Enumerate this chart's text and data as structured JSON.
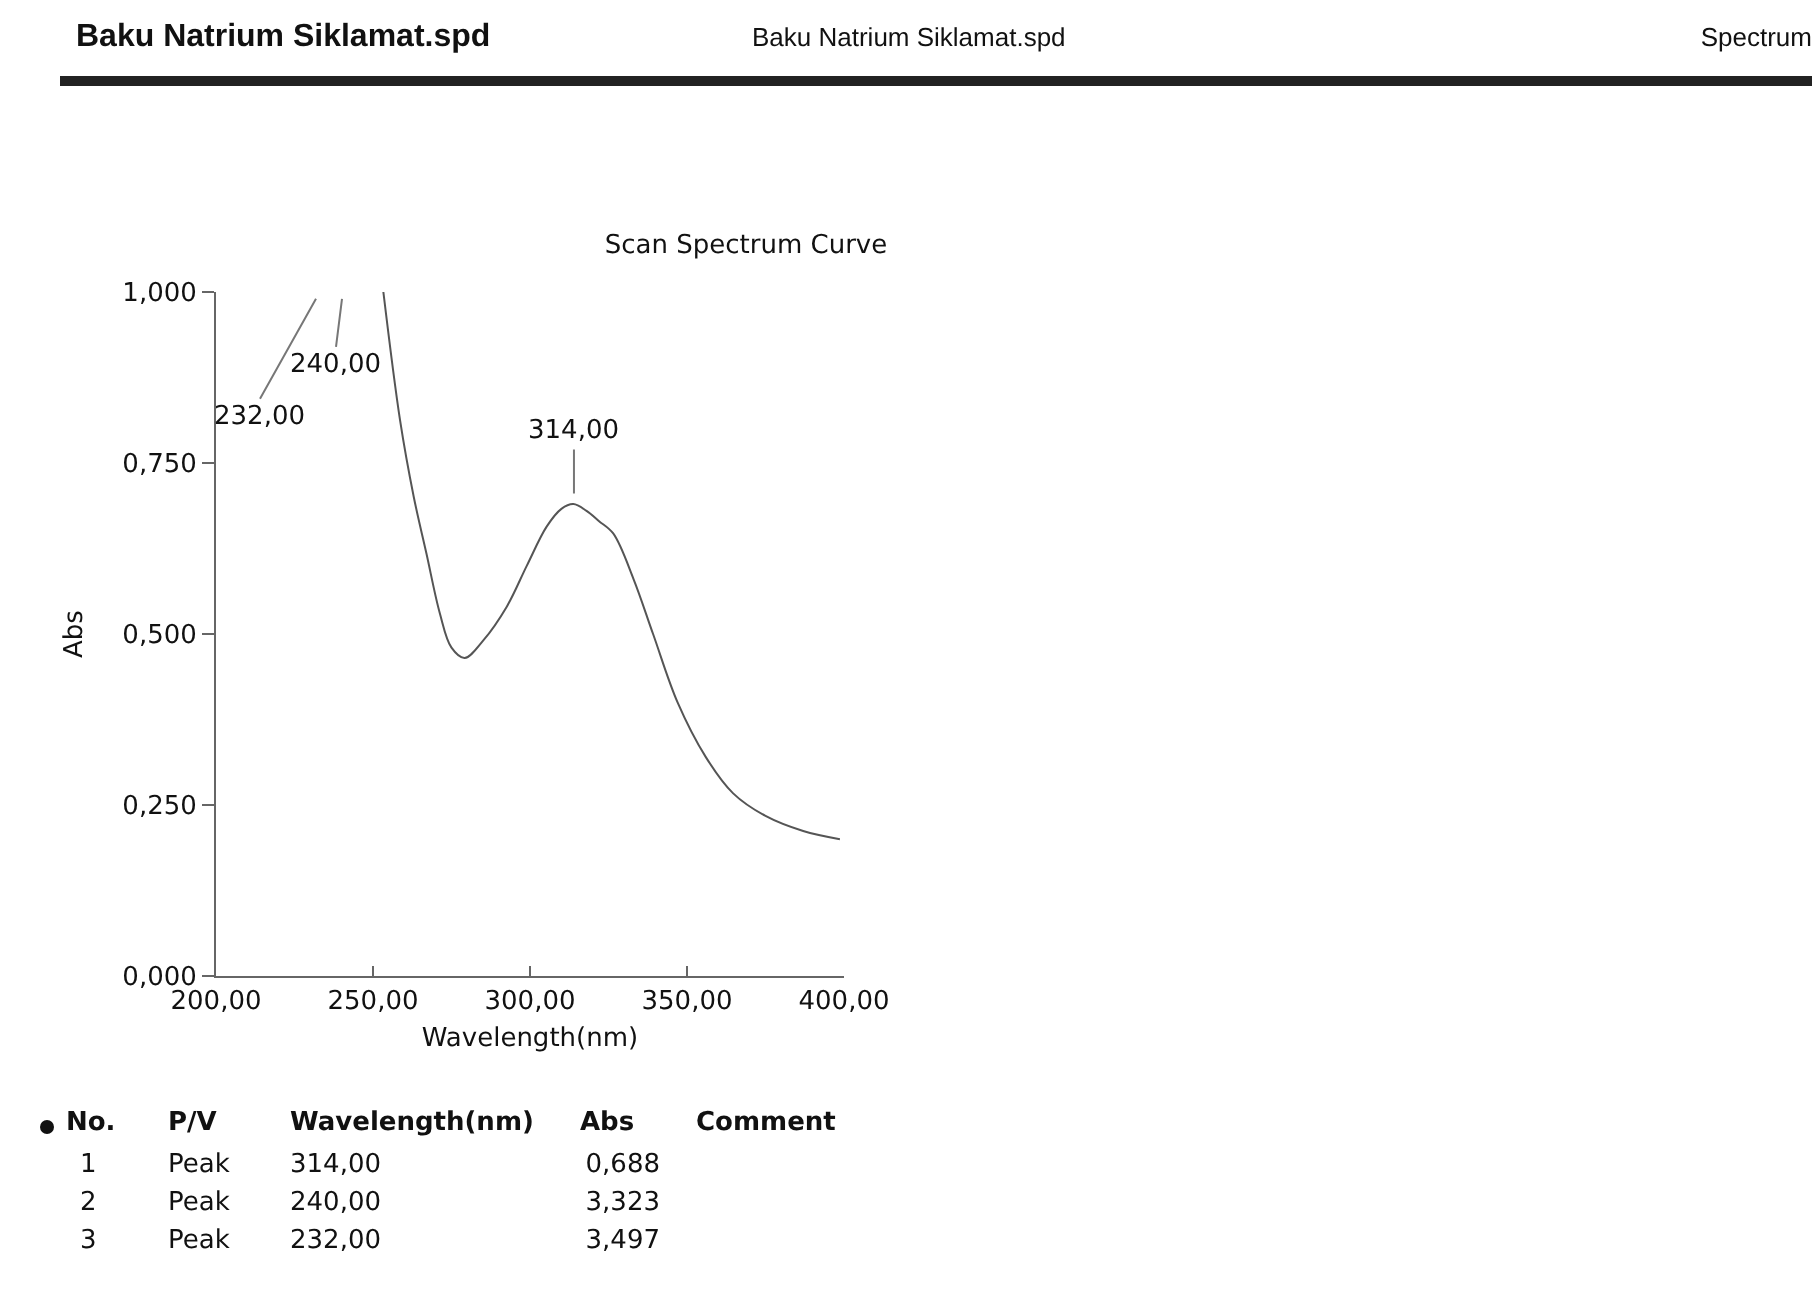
{
  "chart_data": {
    "type": "line",
    "title": "Scan Spectrum Curve",
    "xlabel": "Wavelength(nm)",
    "ylabel": "Abs",
    "x": [
      253.3,
      258.6,
      263,
      267,
      271.3,
      275,
      279.2,
      285,
      292.6,
      299,
      305.3,
      310,
      313.8,
      318,
      322,
      326.5,
      333,
      339.2,
      347,
      356,
      364.7,
      375,
      387,
      398.7
    ],
    "series": [
      {
        "color": "#555555",
        "values": [
          1.0,
          0.813,
          0.7,
          0.618,
          0.53,
          0.48,
          0.465,
          0.49,
          0.54,
          0.6,
          0.657,
          0.683,
          0.69,
          0.68,
          0.665,
          0.647,
          0.58,
          0.5,
          0.4,
          0.32,
          0.267,
          0.234,
          0.212,
          0.2
        ]
      }
    ],
    "xlim": [
      200,
      400
    ],
    "xticks": [
      {
        "value": 200,
        "label": "200,00"
      },
      {
        "value": 250,
        "label": "250,00"
      },
      {
        "value": 300,
        "label": "300,00"
      },
      {
        "value": 350,
        "label": "350,00"
      },
      {
        "value": 400,
        "label": "400,00"
      }
    ],
    "ylim": [
      0,
      1
    ],
    "yticks": [
      {
        "value": 0,
        "label": "0,000"
      },
      {
        "value": 0.25,
        "label": "0,250"
      },
      {
        "value": 0.5,
        "label": "0,500"
      },
      {
        "value": 0.75,
        "label": "0,750"
      },
      {
        "value": 1,
        "label": "1,000"
      }
    ],
    "grid": false,
    "marker": "none",
    "line_style": "solid",
    "annotations": [
      "Baku Natrium Siklamat.spd",
      "Baku Natrium Siklamat.spd",
      "Spectrum",
      {
        "text": "314,00",
        "x": 314,
        "y": 0.688
      },
      "240,00",
      "232,00",
      "No.",
      "P/V",
      "Wavelength(nm)",
      "Abs",
      "Comment",
      "1",
      "Peak",
      "314,00",
      "0,688",
      "2",
      "Peak",
      "240,00",
      "3,323",
      "3",
      "Peak",
      "232,00",
      "3,497"
    ]
  }
}
